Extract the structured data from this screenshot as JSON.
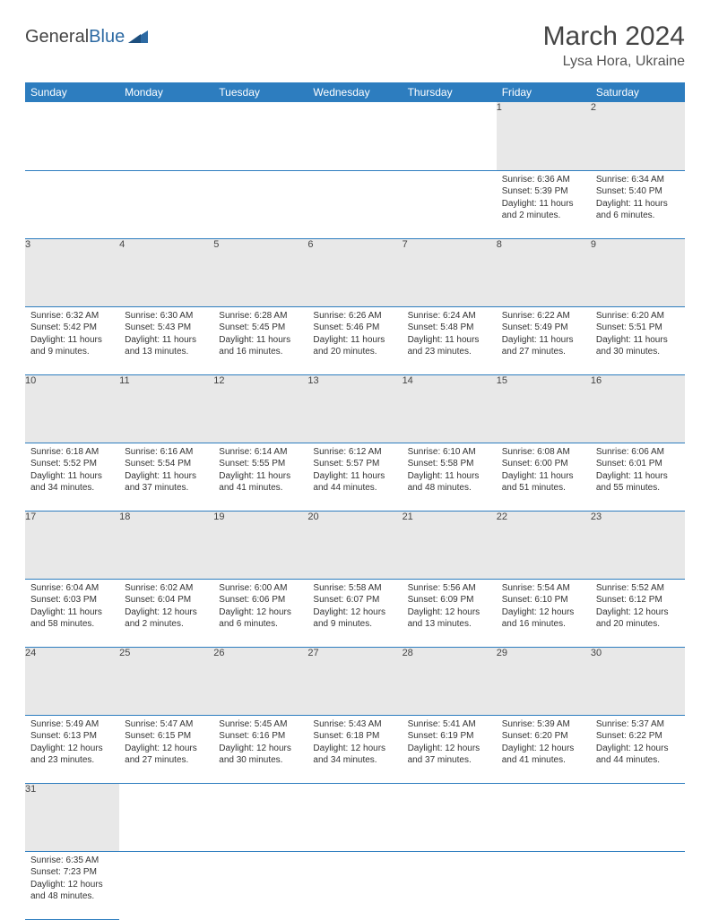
{
  "logo": {
    "general": "General",
    "blue": "Blue"
  },
  "header": {
    "title": "March 2024",
    "location": "Lysa Hora, Ukraine"
  },
  "colors": {
    "header_bg": "#2d7dbf",
    "header_text": "#ffffff",
    "daynum_bg": "#e8e8e8",
    "row_divider": "#2d7dbf",
    "text": "#333333",
    "logo_blue": "#2d6aa3"
  },
  "weekdays": [
    "Sunday",
    "Monday",
    "Tuesday",
    "Wednesday",
    "Thursday",
    "Friday",
    "Saturday"
  ],
  "weeks": [
    {
      "days": [
        {
          "num": "",
          "sunrise": "",
          "sunset": "",
          "daylight": ""
        },
        {
          "num": "",
          "sunrise": "",
          "sunset": "",
          "daylight": ""
        },
        {
          "num": "",
          "sunrise": "",
          "sunset": "",
          "daylight": ""
        },
        {
          "num": "",
          "sunrise": "",
          "sunset": "",
          "daylight": ""
        },
        {
          "num": "",
          "sunrise": "",
          "sunset": "",
          "daylight": ""
        },
        {
          "num": "1",
          "sunrise": "Sunrise: 6:36 AM",
          "sunset": "Sunset: 5:39 PM",
          "daylight": "Daylight: 11 hours and 2 minutes."
        },
        {
          "num": "2",
          "sunrise": "Sunrise: 6:34 AM",
          "sunset": "Sunset: 5:40 PM",
          "daylight": "Daylight: 11 hours and 6 minutes."
        }
      ]
    },
    {
      "days": [
        {
          "num": "3",
          "sunrise": "Sunrise: 6:32 AM",
          "sunset": "Sunset: 5:42 PM",
          "daylight": "Daylight: 11 hours and 9 minutes."
        },
        {
          "num": "4",
          "sunrise": "Sunrise: 6:30 AM",
          "sunset": "Sunset: 5:43 PM",
          "daylight": "Daylight: 11 hours and 13 minutes."
        },
        {
          "num": "5",
          "sunrise": "Sunrise: 6:28 AM",
          "sunset": "Sunset: 5:45 PM",
          "daylight": "Daylight: 11 hours and 16 minutes."
        },
        {
          "num": "6",
          "sunrise": "Sunrise: 6:26 AM",
          "sunset": "Sunset: 5:46 PM",
          "daylight": "Daylight: 11 hours and 20 minutes."
        },
        {
          "num": "7",
          "sunrise": "Sunrise: 6:24 AM",
          "sunset": "Sunset: 5:48 PM",
          "daylight": "Daylight: 11 hours and 23 minutes."
        },
        {
          "num": "8",
          "sunrise": "Sunrise: 6:22 AM",
          "sunset": "Sunset: 5:49 PM",
          "daylight": "Daylight: 11 hours and 27 minutes."
        },
        {
          "num": "9",
          "sunrise": "Sunrise: 6:20 AM",
          "sunset": "Sunset: 5:51 PM",
          "daylight": "Daylight: 11 hours and 30 minutes."
        }
      ]
    },
    {
      "days": [
        {
          "num": "10",
          "sunrise": "Sunrise: 6:18 AM",
          "sunset": "Sunset: 5:52 PM",
          "daylight": "Daylight: 11 hours and 34 minutes."
        },
        {
          "num": "11",
          "sunrise": "Sunrise: 6:16 AM",
          "sunset": "Sunset: 5:54 PM",
          "daylight": "Daylight: 11 hours and 37 minutes."
        },
        {
          "num": "12",
          "sunrise": "Sunrise: 6:14 AM",
          "sunset": "Sunset: 5:55 PM",
          "daylight": "Daylight: 11 hours and 41 minutes."
        },
        {
          "num": "13",
          "sunrise": "Sunrise: 6:12 AM",
          "sunset": "Sunset: 5:57 PM",
          "daylight": "Daylight: 11 hours and 44 minutes."
        },
        {
          "num": "14",
          "sunrise": "Sunrise: 6:10 AM",
          "sunset": "Sunset: 5:58 PM",
          "daylight": "Daylight: 11 hours and 48 minutes."
        },
        {
          "num": "15",
          "sunrise": "Sunrise: 6:08 AM",
          "sunset": "Sunset: 6:00 PM",
          "daylight": "Daylight: 11 hours and 51 minutes."
        },
        {
          "num": "16",
          "sunrise": "Sunrise: 6:06 AM",
          "sunset": "Sunset: 6:01 PM",
          "daylight": "Daylight: 11 hours and 55 minutes."
        }
      ]
    },
    {
      "days": [
        {
          "num": "17",
          "sunrise": "Sunrise: 6:04 AM",
          "sunset": "Sunset: 6:03 PM",
          "daylight": "Daylight: 11 hours and 58 minutes."
        },
        {
          "num": "18",
          "sunrise": "Sunrise: 6:02 AM",
          "sunset": "Sunset: 6:04 PM",
          "daylight": "Daylight: 12 hours and 2 minutes."
        },
        {
          "num": "19",
          "sunrise": "Sunrise: 6:00 AM",
          "sunset": "Sunset: 6:06 PM",
          "daylight": "Daylight: 12 hours and 6 minutes."
        },
        {
          "num": "20",
          "sunrise": "Sunrise: 5:58 AM",
          "sunset": "Sunset: 6:07 PM",
          "daylight": "Daylight: 12 hours and 9 minutes."
        },
        {
          "num": "21",
          "sunrise": "Sunrise: 5:56 AM",
          "sunset": "Sunset: 6:09 PM",
          "daylight": "Daylight: 12 hours and 13 minutes."
        },
        {
          "num": "22",
          "sunrise": "Sunrise: 5:54 AM",
          "sunset": "Sunset: 6:10 PM",
          "daylight": "Daylight: 12 hours and 16 minutes."
        },
        {
          "num": "23",
          "sunrise": "Sunrise: 5:52 AM",
          "sunset": "Sunset: 6:12 PM",
          "daylight": "Daylight: 12 hours and 20 minutes."
        }
      ]
    },
    {
      "days": [
        {
          "num": "24",
          "sunrise": "Sunrise: 5:49 AM",
          "sunset": "Sunset: 6:13 PM",
          "daylight": "Daylight: 12 hours and 23 minutes."
        },
        {
          "num": "25",
          "sunrise": "Sunrise: 5:47 AM",
          "sunset": "Sunset: 6:15 PM",
          "daylight": "Daylight: 12 hours and 27 minutes."
        },
        {
          "num": "26",
          "sunrise": "Sunrise: 5:45 AM",
          "sunset": "Sunset: 6:16 PM",
          "daylight": "Daylight: 12 hours and 30 minutes."
        },
        {
          "num": "27",
          "sunrise": "Sunrise: 5:43 AM",
          "sunset": "Sunset: 6:18 PM",
          "daylight": "Daylight: 12 hours and 34 minutes."
        },
        {
          "num": "28",
          "sunrise": "Sunrise: 5:41 AM",
          "sunset": "Sunset: 6:19 PM",
          "daylight": "Daylight: 12 hours and 37 minutes."
        },
        {
          "num": "29",
          "sunrise": "Sunrise: 5:39 AM",
          "sunset": "Sunset: 6:20 PM",
          "daylight": "Daylight: 12 hours and 41 minutes."
        },
        {
          "num": "30",
          "sunrise": "Sunrise: 5:37 AM",
          "sunset": "Sunset: 6:22 PM",
          "daylight": "Daylight: 12 hours and 44 minutes."
        }
      ]
    },
    {
      "days": [
        {
          "num": "31",
          "sunrise": "Sunrise: 6:35 AM",
          "sunset": "Sunset: 7:23 PM",
          "daylight": "Daylight: 12 hours and 48 minutes."
        },
        {
          "num": "",
          "sunrise": "",
          "sunset": "",
          "daylight": ""
        },
        {
          "num": "",
          "sunrise": "",
          "sunset": "",
          "daylight": ""
        },
        {
          "num": "",
          "sunrise": "",
          "sunset": "",
          "daylight": ""
        },
        {
          "num": "",
          "sunrise": "",
          "sunset": "",
          "daylight": ""
        },
        {
          "num": "",
          "sunrise": "",
          "sunset": "",
          "daylight": ""
        },
        {
          "num": "",
          "sunrise": "",
          "sunset": "",
          "daylight": ""
        }
      ]
    }
  ]
}
